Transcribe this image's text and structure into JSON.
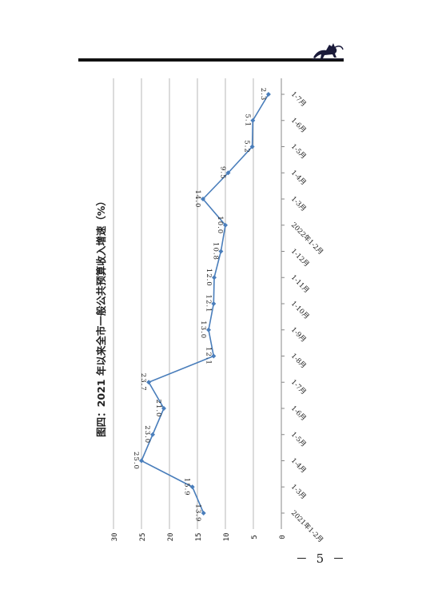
{
  "page": {
    "page_number": "－ 5 －"
  },
  "colors": {
    "line": "#4a7ebb",
    "grid": "#a6a6a6",
    "axis": "#888888",
    "text": "#222222",
    "rule": "#111111"
  },
  "chart_data": {
    "type": "line",
    "title": "图四：2021 年以来全市一般公共预算收入增速（%）",
    "orientation": "rotated-90-clockwise",
    "categories": [
      "2021年1-2月",
      "1-3月",
      "1-4月",
      "1-5月",
      "1-6月",
      "1-7月",
      "1-8月",
      "1-9月",
      "1-10月",
      "1-11月",
      "1-12月",
      "2022年1-2月",
      "1-3月",
      "1-4月",
      "1-5月",
      "1-6月",
      "1-7月"
    ],
    "visible_tick_labels": [
      "2021年1-2月",
      "1-3月",
      "1-4月",
      "1-5月",
      "1-6月",
      "1-7月",
      "1-8月",
      "1-9月",
      "1-10月",
      "1-11月",
      "1-12月",
      "2022年1-2月",
      "1-3月",
      "1-4月",
      "1-5月",
      "1-6月",
      "1-7月"
    ],
    "series": [
      {
        "values": [
          13.9,
          15.9,
          25.0,
          23.0,
          21.0,
          23.7,
          12.1,
          13.0,
          12.1,
          12.0,
          10.8,
          10.0,
          14.0,
          9.5,
          5.2,
          5.1,
          2.3
        ]
      }
    ],
    "data_labels": [
      "13.9",
      "15.9",
      "25.0",
      "23.0",
      "21.0",
      "23.7",
      "12.1",
      "13.0",
      "12.1",
      "12.0",
      "10.8",
      "10.0",
      "14.0",
      "9.5",
      "5.2",
      "5.1",
      "2.3"
    ],
    "ylim": [
      0,
      30
    ],
    "yticks": [
      0,
      5,
      10,
      15,
      20,
      25,
      30
    ],
    "xlabel": "",
    "ylabel": "",
    "grid": true,
    "legend": "none"
  }
}
